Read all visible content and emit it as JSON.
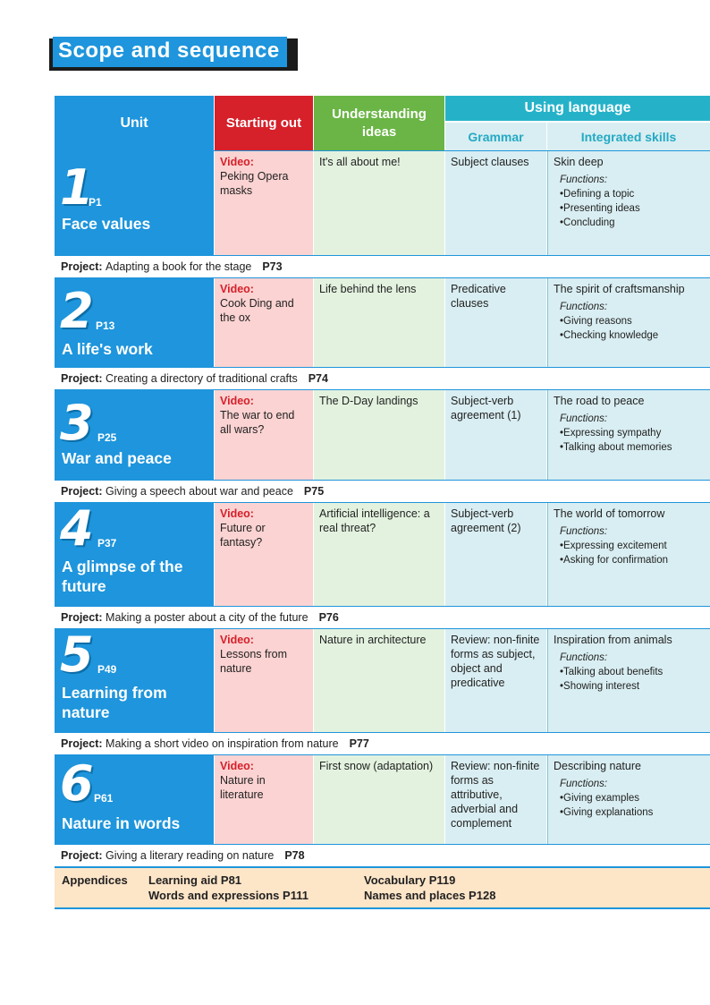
{
  "title": "Scope and sequence",
  "headers": {
    "unit": "Unit",
    "starting_out": "Starting out",
    "understanding_ideas": "Understanding ideas",
    "using_language": "Using language",
    "grammar": "Grammar",
    "integrated_skills": "Integrated skills"
  },
  "functions_label": "Functions:",
  "video_label": "Video:",
  "project_label": "Project:",
  "units": [
    {
      "num": "1",
      "page": "P1",
      "name": "Face values",
      "video": "Peking Opera masks",
      "understanding": "It's all about me!",
      "grammar": "Subject clauses",
      "skills_title": "Skin deep",
      "functions": [
        "•Defining a topic",
        "•Presenting ideas",
        "•Concluding"
      ],
      "project": "Adapting a book for the stage",
      "project_page": "P73"
    },
    {
      "num": "2",
      "page": "P13",
      "name": "A life's work",
      "video": "Cook Ding and the ox",
      "understanding": "Life behind the lens",
      "grammar": "Predicative clauses",
      "skills_title": "The spirit of craftsmanship",
      "functions": [
        "•Giving reasons",
        "•Checking knowledge"
      ],
      "project": "Creating a directory of traditional crafts",
      "project_page": "P74"
    },
    {
      "num": "3",
      "page": "P25",
      "name": "War and peace",
      "video": "The war to end all wars?",
      "understanding": "The D-Day landings",
      "grammar": "Subject-verb agreement (1)",
      "skills_title": "The road to peace",
      "functions": [
        "•Expressing sympathy",
        "•Talking about memories"
      ],
      "project": "Giving a speech about war and peace",
      "project_page": "P75"
    },
    {
      "num": "4",
      "page": "P37",
      "name": "A glimpse of the future",
      "video": "Future or fantasy?",
      "understanding": "Artificial intelligence: a real threat?",
      "grammar": "Subject-verb agreement (2)",
      "skills_title": "The world of tomorrow",
      "functions": [
        "•Expressing excitement",
        "•Asking for confirmation"
      ],
      "project": "Making a poster about a city of the future",
      "project_page": "P76"
    },
    {
      "num": "5",
      "page": "P49",
      "name": "Learning from nature",
      "video": "Lessons from nature",
      "understanding": "Nature in architecture",
      "grammar": "Review: non-finite forms as subject, object and predicative",
      "skills_title": "Inspiration from animals",
      "functions": [
        "•Talking about benefits",
        "•Showing interest"
      ],
      "project": "Making a short video on inspiration from nature",
      "project_page": "P77"
    },
    {
      "num": "6",
      "page": "P61",
      "name": "Nature in words",
      "video": "Nature in literature",
      "understanding": "First snow (adaptation)",
      "grammar": "Review: non-finite forms as attributive, adverbial and complement",
      "skills_title": "Describing nature",
      "functions": [
        "•Giving examples",
        "•Giving explanations"
      ],
      "project": "Giving a literary reading on nature",
      "project_page": "P78"
    }
  ],
  "appendices": {
    "label": "Appendices",
    "learning_aid": "Learning aid   P81",
    "words_expressions": "Words and expressions   P111",
    "vocabulary": "Vocabulary   P119",
    "names_places": "Names and places   P128"
  },
  "colors": {
    "unit_blue": "#1e95dc",
    "start_red": "#d6202a",
    "under_green": "#6ab545",
    "using_teal": "#25b2c9"
  }
}
